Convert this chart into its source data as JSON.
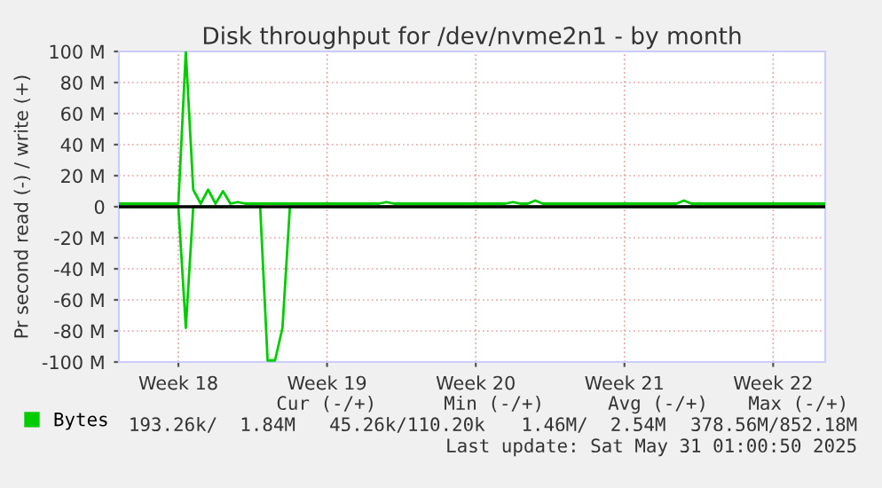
{
  "chart_data": {
    "type": "line",
    "title": "Disk throughput for /dev/nvme2n1 - by month",
    "ylabel": "Pr second read (-) / write (+)",
    "categories": [
      null,
      null,
      null,
      null,
      null,
      null,
      null,
      null,
      "Week 18",
      null,
      null,
      null,
      null,
      null,
      null,
      null,
      null,
      null,
      null,
      null,
      null,
      null,
      null,
      null,
      null,
      null,
      null,
      null,
      "Week 19",
      null,
      null,
      null,
      null,
      null,
      null,
      null,
      null,
      null,
      null,
      null,
      null,
      null,
      null,
      null,
      null,
      null,
      null,
      null,
      "Week 20",
      null,
      null,
      null,
      null,
      null,
      null,
      null,
      null,
      null,
      null,
      null,
      null,
      null,
      null,
      null,
      null,
      null,
      null,
      null,
      "Week 21",
      null,
      null,
      null,
      null,
      null,
      null,
      null,
      null,
      null,
      null,
      null,
      null,
      null,
      null,
      null,
      null,
      null,
      null,
      null,
      "Week 22",
      null,
      null,
      null,
      null,
      null,
      null,
      null
    ],
    "ylim": [
      -100,
      100
    ],
    "yticks": [
      {
        "value": 100,
        "label": "100 M"
      },
      {
        "value": 80,
        "label": "80 M"
      },
      {
        "value": 60,
        "label": "60 M"
      },
      {
        "value": 40,
        "label": "40 M"
      },
      {
        "value": 20,
        "label": "20 M"
      },
      0,
      {
        "value": -20,
        "label": "-20 M"
      },
      {
        "value": -40,
        "label": "-40 M"
      },
      {
        "value": -60,
        "label": "-60 M"
      },
      {
        "value": -80,
        "label": "-80 M"
      },
      {
        "value": -100,
        "label": "-100 M"
      }
    ],
    "grid": true,
    "legend": "bottom left",
    "ref_lines": [
      {
        "axis": "y",
        "value": 0,
        "color": "#000000"
      }
    ],
    "series": [
      {
        "color": "#00cc00",
        "values": [
          0,
          0,
          0,
          0,
          0,
          0,
          0,
          0,
          0,
          -78,
          0,
          0,
          0,
          0,
          0,
          0,
          0,
          0,
          0,
          0,
          -99,
          -99,
          -78,
          0,
          0,
          0,
          0,
          0,
          0,
          0,
          0,
          0,
          0,
          0,
          0,
          0,
          0,
          0,
          0,
          0,
          0,
          0,
          0,
          0,
          0,
          0,
          0,
          0,
          0,
          0,
          0,
          0,
          0,
          0,
          0,
          0,
          0,
          0,
          0,
          0,
          0,
          0,
          0,
          0,
          0,
          0,
          0,
          0,
          0,
          0,
          0,
          0,
          0,
          0,
          0,
          0,
          0,
          0,
          0,
          0,
          0,
          0,
          0,
          0,
          0,
          0,
          0,
          0,
          0,
          0,
          0,
          0,
          0,
          0,
          0,
          0
        ]
      },
      {
        "name": "Bytes",
        "color": "#00cc00",
        "values": [
          2,
          2,
          2,
          2,
          2,
          2,
          2,
          2,
          2,
          100,
          11,
          2,
          11,
          2,
          10,
          2,
          3,
          2,
          2,
          2,
          2,
          2,
          2,
          2,
          2,
          2,
          2,
          2,
          2,
          2,
          2,
          2,
          2,
          2,
          2,
          2,
          3,
          2,
          2,
          2,
          2,
          2,
          2,
          2,
          2,
          2,
          2,
          2,
          2,
          2,
          2,
          2,
          2,
          3,
          2,
          2,
          4,
          2,
          2,
          2,
          2,
          2,
          2,
          2,
          2,
          2,
          2,
          2,
          2,
          2,
          2,
          2,
          2,
          2,
          2,
          2,
          4,
          2,
          2,
          2,
          2,
          2,
          2,
          2,
          2,
          2,
          2,
          2,
          2,
          2,
          2,
          2,
          2,
          2,
          2,
          2
        ]
      }
    ],
    "annotations": [
      "Cur (-/+)",
      "Min (-/+)",
      "Avg (-/+)",
      "Max (-/+)",
      "193.26k/  1.84M",
      "45.26k/110.20k",
      "1.46M/  2.54M",
      "378.56M/852.18M",
      "Last update: Sat May 31 01:00:50 2025"
    ]
  }
}
